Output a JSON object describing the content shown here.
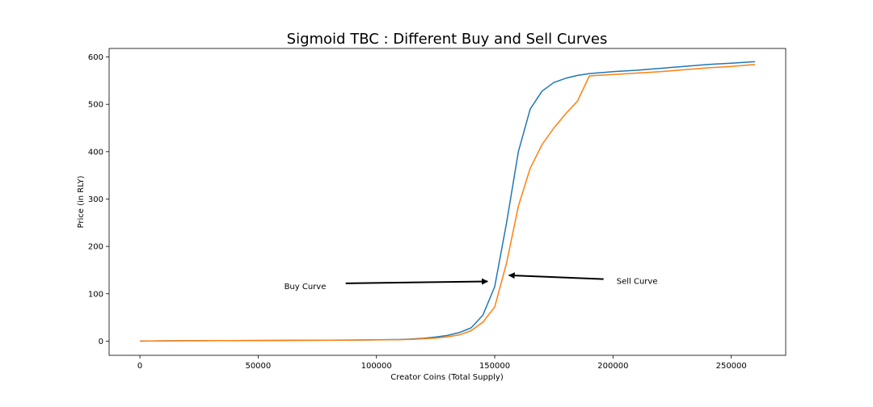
{
  "chart_data": {
    "type": "line",
    "title": "Sigmoid TBC : Different Buy and Sell Curves",
    "xlabel": "Creator Coins (Total Supply)",
    "ylabel": "Price (in RLY)",
    "xlim": [
      -13000,
      273000
    ],
    "ylim": [
      -30,
      618
    ],
    "xticks": [
      0,
      50000,
      100000,
      150000,
      200000,
      250000
    ],
    "yticks": [
      0,
      100,
      200,
      300,
      400,
      500,
      600
    ],
    "grid": false,
    "legend": "none",
    "series": [
      {
        "color": "#1f77b4",
        "x": [
          0,
          10000,
          20000,
          30000,
          40000,
          50000,
          60000,
          70000,
          80000,
          90000,
          100000,
          110000,
          115000,
          120000,
          125000,
          130000,
          135000,
          140000,
          145000,
          150000,
          155000,
          160000,
          165000,
          170000,
          175000,
          180000,
          185000,
          190000,
          200000,
          210000,
          220000,
          230000,
          240000,
          250000,
          260000
        ],
        "y": [
          0,
          0.5,
          0.8,
          1,
          1.2,
          1.4,
          1.6,
          1.8,
          2,
          2.3,
          2.8,
          3.5,
          4.5,
          6,
          8.5,
          12,
          18,
          28,
          55,
          115,
          250,
          400,
          490,
          528,
          546,
          555,
          561,
          565,
          569,
          572,
          576,
          580,
          584,
          587,
          590
        ]
      },
      {
        "color": "#ff7f0e",
        "x": [
          0,
          10000,
          20000,
          30000,
          40000,
          50000,
          60000,
          70000,
          80000,
          90000,
          100000,
          110000,
          115000,
          120000,
          125000,
          130000,
          135000,
          140000,
          145000,
          150000,
          155000,
          160000,
          165000,
          170000,
          175000,
          180000,
          185000,
          190000,
          200000,
          210000,
          220000,
          230000,
          240000,
          250000,
          260000
        ],
        "y": [
          0,
          0.5,
          0.8,
          1,
          1.2,
          1.4,
          1.6,
          1.8,
          2,
          2.2,
          2.5,
          3,
          3.8,
          5,
          6.5,
          9,
          13,
          22,
          40,
          72,
          165,
          285,
          365,
          415,
          450,
          480,
          507,
          560,
          563,
          566,
          569,
          573,
          577,
          580,
          584
        ]
      }
    ],
    "annotations": [
      {
        "text": "Buy Curve",
        "text_xy": [
          61000,
          110
        ],
        "arrow_from": [
          87000,
          122
        ],
        "arrow_to": [
          147000,
          126
        ]
      },
      {
        "text": "Sell Curve",
        "text_xy": [
          201500,
          121
        ],
        "arrow_from": [
          196000,
          131
        ],
        "arrow_to": [
          156000,
          139
        ]
      }
    ]
  }
}
